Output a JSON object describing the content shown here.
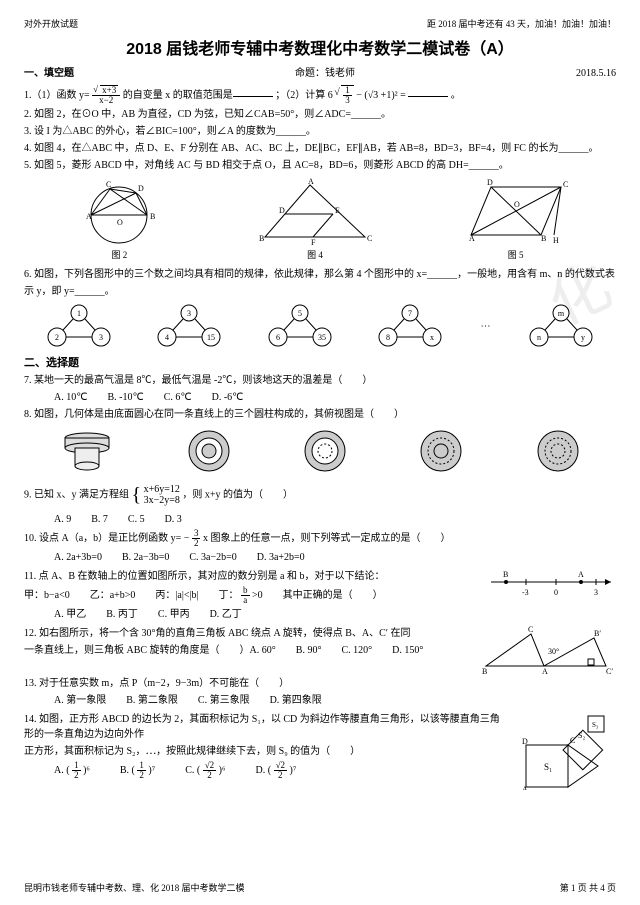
{
  "header": {
    "left": "对外开放试题",
    "right": "距 2018 届中考还有 43 天，加油！加油！加油！"
  },
  "title": "2018 届钱老师专辅中考数理化中考数学二模试卷（A）",
  "meta": {
    "section": "一、填空题",
    "author": "命题：钱老师",
    "date": "2018.5.16"
  },
  "q1": {
    "pre": "1.（1）函数 y= ",
    "num": "√(x+3)",
    "den": "x−2",
    "mid": " 的自变量 x 的取值范围是",
    "post": "；（2）计算 6",
    "root": "1/3",
    "tail": " − (√3 +1)² = ",
    "end": "。"
  },
  "q2": "2. 如图 2，在⊙O 中，AB 为直径，CD 为弦，已知∠CAB=50°，则∠ADC=______。",
  "q3": "3. 设 I 为△ABC 的外心，若∠BIC=100°，则∠A 的度数为______。",
  "q4": "4. 如图 4，在△ABC 中，点 D、E、F 分别在 AB、AC、BC 上，DE∥BC，EF∥AB，若 AB=8，BD=3，BF=4，则 FC 的长为______。",
  "q5": "5. 如图 5，菱形 ABCD 中，对角线 AC 与 BD 相交于点 O，且 AC=8，BD=6，则菱形 ABCD 的高 DH=______。",
  "figs1": {
    "f2": "图 2",
    "f4": "图 4",
    "f5": "图 5"
  },
  "q6a": "6. 如图，下列各图形中的三个数之间均具有相同的规律，依此规律，那么第 4 个图形中的 x=______，一般地，用含有 m、n 的代数式表",
  "q6b": "示 y，即 y=______。",
  "seq": [
    [
      "1",
      "2",
      "3"
    ],
    [
      "3",
      "4",
      "15"
    ],
    [
      "5",
      "6",
      "35"
    ],
    [
      "7",
      "8",
      "x"
    ],
    [
      "m",
      "n",
      "y"
    ]
  ],
  "sec2": "二、选择题",
  "q7": "7. 某地一天的最高气温是 8℃，最低气温是 -2℃，则该地这天的温差是（　　）",
  "q7o": [
    "A. 10℃",
    "B. -10℃",
    "C. 6℃",
    "D. -6℃"
  ],
  "q8": "8. 如图，几何体是由底面圆心在同一条直线上的三个圆柱构成的，其俯视图是（　　）",
  "q9a": "9. 已知 x、y 满足方程组",
  "q9e1": "x+6y=12",
  "q9e2": "3x−2y=8",
  "q9b": "，则 x+y 的值为（　　）",
  "q9o": [
    "A. 9",
    "B. 7",
    "C. 5",
    "D. 3"
  ],
  "q10a": "10. 设点 A（a，b）是正比例函数 y= − ",
  "q10b": " x 图象上的任意一点，则下列等式一定成立的是（　　）",
  "q10o": [
    "A. 2a+3b=0",
    "B. 2a−3b=0",
    "C. 3a−2b=0",
    "D. 3a+2b=0"
  ],
  "q11a": "11. 点 A、B 在数轴上的位置如图所示，其对应的数分别是 a 和 b，对于以下结论：",
  "q11b": "甲：b−a<0　　乙：a+b>0　　丙：|a|<|b|　　丁：",
  "q11c": " >0　　其中正确的是（　　）",
  "q11o": [
    "A. 甲乙",
    "B. 丙丁",
    "C. 甲丙",
    "D. 乙丁"
  ],
  "q12a": "12. 如右图所示，将一个含 30°角的直角三角板 ABC 绕点 A 旋转，使得点 B、A、C′ 在同",
  "q12b": "一条直线上，则三角板 ABC 旋转的角度是（　　）A. 60°　　B. 90°　　C. 120°　　D. 150°",
  "q13": "13. 对于任意实数 m，点 P（m−2，9−3m）不可能在（　　）",
  "q13o": [
    "A. 第一象限",
    "B. 第二象限",
    "C. 第三象限",
    "D. 第四象限"
  ],
  "q14a": "14. 如图，正方形 ABCD 的边长为 2，其面积标记为 S₁，以 CD 为斜边作等腰直角三角形，以该等腰直角三角形的一条直角边为边向外作",
  "q14b": "正方形，其面积标记为 S₂，⋯，按照此规律继续下去，则 S₉ 的值为（　　）",
  "q14o": [
    "A. ( 1/2 )⁶",
    "B. ( 1/2 )⁷",
    "C. ( √2/2 )⁶",
    "D. ( √2/2 )⁷"
  ],
  "footer": {
    "left": "昆明市钱老师专辅中考数、理、化 2018 届中考数学二模",
    "right": "第 1 页 共 4 页"
  }
}
